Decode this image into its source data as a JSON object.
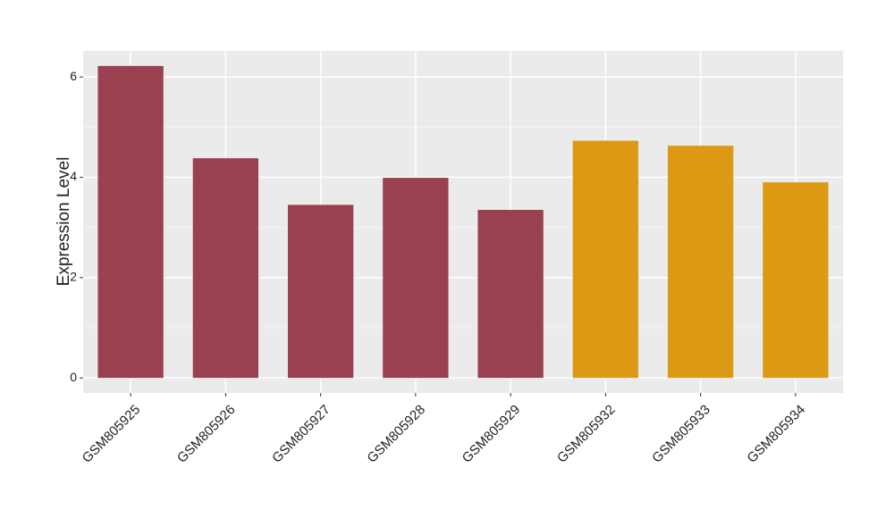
{
  "chart_data": {
    "type": "bar",
    "y_label": "Expression Level",
    "categories": [
      "GSM805925",
      "GSM805926",
      "GSM805927",
      "GSM805928",
      "GSM805929",
      "GSM805932",
      "GSM805933",
      "GSM805934"
    ],
    "values": [
      6.22,
      4.38,
      3.45,
      3.99,
      3.35,
      4.73,
      4.63,
      3.9
    ],
    "colors": [
      "#994150",
      "#994150",
      "#994150",
      "#994150",
      "#994150",
      "#dc9a14",
      "#dc9a14",
      "#dc9a14"
    ],
    "ylim": [
      -0.3,
      6.52
    ],
    "yticks": [
      0,
      2,
      4,
      6
    ],
    "grid": true
  }
}
